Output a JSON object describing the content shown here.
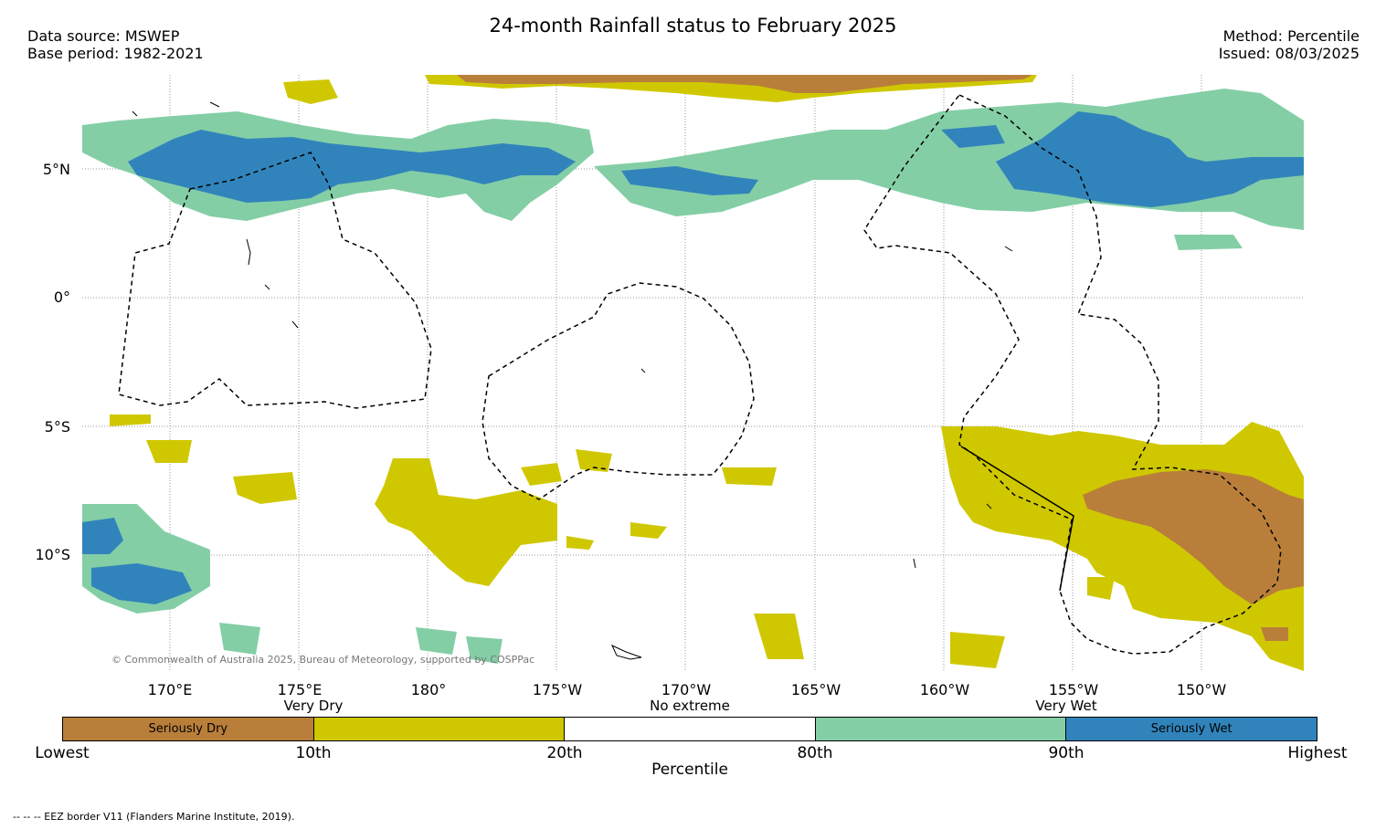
{
  "header": {
    "title": "24-month Rainfall status to February 2025",
    "source_line": "Data source: MSWEP",
    "base_line": "Base period: 1982-2021",
    "method_line": "Method: Percentile",
    "issued_line": "Issued: 08/03/2025"
  },
  "map": {
    "latitude_labels": [
      "5°N",
      "0°",
      "5°S",
      "10°S"
    ],
    "longitude_labels": [
      "170°E",
      "175°E",
      "180°",
      "175°W",
      "170°W",
      "165°W",
      "160°W",
      "155°W",
      "150°W"
    ],
    "copyright": "© Commonwealth of Australia 2025, Bureau of Meteorology, supported by COSPPac",
    "colors": {
      "seriously_dry": "#b97f3a",
      "very_dry": "#cfc800",
      "no_extreme": "#ffffff",
      "very_wet": "#84cea6",
      "seriously_wet": "#3184bb",
      "coast": "#000000"
    }
  },
  "legend": {
    "categories": [
      "Very Dry",
      "No extreme",
      "Very Wet"
    ],
    "segments": [
      {
        "label": "Seriously Dry",
        "color": "#b97f3a"
      },
      {
        "label": "",
        "color": "#cfc800"
      },
      {
        "label": "",
        "color": "#ffffff"
      },
      {
        "label": "",
        "color": "#84cea6"
      },
      {
        "label": "Seriously Wet",
        "color": "#3184bb"
      }
    ],
    "ticks": [
      "Lowest",
      "10th",
      "20th",
      "80th",
      "90th",
      "Highest"
    ],
    "axis_title": "Percentile"
  },
  "footnote": "--  --  -- EEZ border V11 (Flanders Marine Institute, 2019)."
}
